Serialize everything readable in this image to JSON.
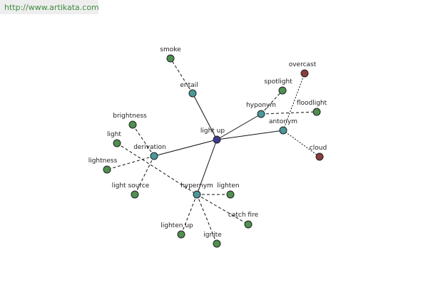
{
  "header": {
    "url": "http://www.artikata.com"
  },
  "nodes": [
    {
      "label": "light up"
    },
    {
      "label": "entail"
    },
    {
      "label": "smoke"
    },
    {
      "label": "hyponym"
    },
    {
      "label": "spotlight"
    },
    {
      "label": "floodlight"
    },
    {
      "label": "antonym"
    },
    {
      "label": "overcast"
    },
    {
      "label": "cloud"
    },
    {
      "label": "derivation"
    },
    {
      "label": "brightness"
    },
    {
      "label": "light"
    },
    {
      "label": "lightness"
    },
    {
      "label": "light source"
    },
    {
      "label": "hypernym"
    },
    {
      "label": "lighten"
    },
    {
      "label": "catch fire"
    },
    {
      "label": "lighten up"
    },
    {
      "label": "ignite"
    }
  ]
}
